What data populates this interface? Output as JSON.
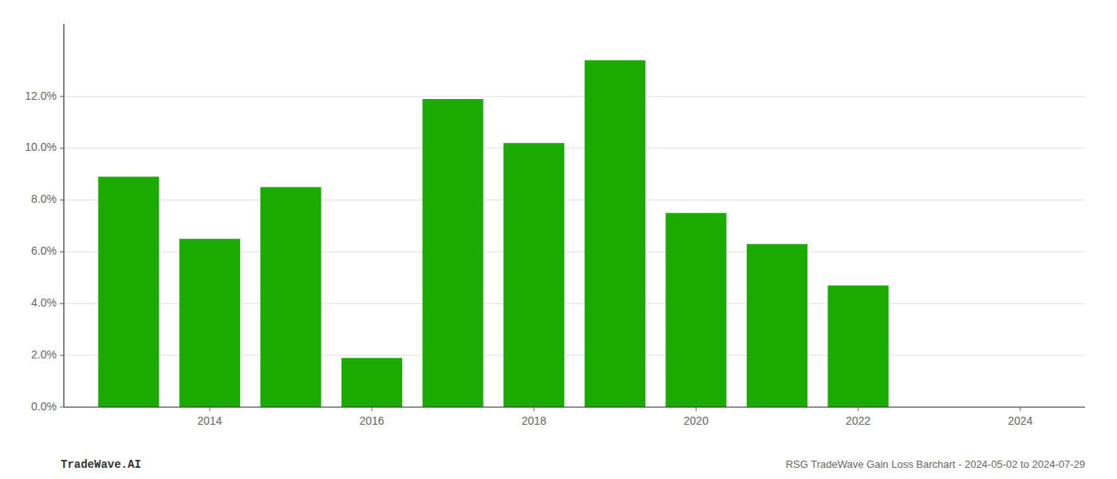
{
  "chart_data": {
    "type": "bar",
    "x": [
      2013,
      2014,
      2015,
      2016,
      2017,
      2018,
      2019,
      2020,
      2021,
      2022,
      2023
    ],
    "values": [
      0.089,
      0.065,
      0.085,
      0.019,
      0.119,
      0.102,
      0.134,
      0.075,
      0.063,
      0.047,
      0.0
    ],
    "color": "#1aaa00",
    "xlim": [
      2012.2,
      2024.8
    ],
    "xticks": [
      2014,
      2016,
      2018,
      2020,
      2022,
      2024
    ],
    "ylim": [
      0.0,
      0.148
    ],
    "yticks": [
      {
        "value": 0.0,
        "label": "0.0%"
      },
      {
        "value": 0.02,
        "label": "2.0%"
      },
      {
        "value": 0.04,
        "label": "4.0%"
      },
      {
        "value": 0.06,
        "label": "6.0%"
      },
      {
        "value": 0.08,
        "label": "8.0%"
      },
      {
        "value": 0.1,
        "label": "10.0%"
      },
      {
        "value": 0.12,
        "label": "12.0%"
      }
    ],
    "grid": true,
    "annotations": [
      "TradeWave.AI",
      "RSG TradeWave Gain Loss Barchart - 2024-05-02 to 2024-07-29"
    ]
  }
}
